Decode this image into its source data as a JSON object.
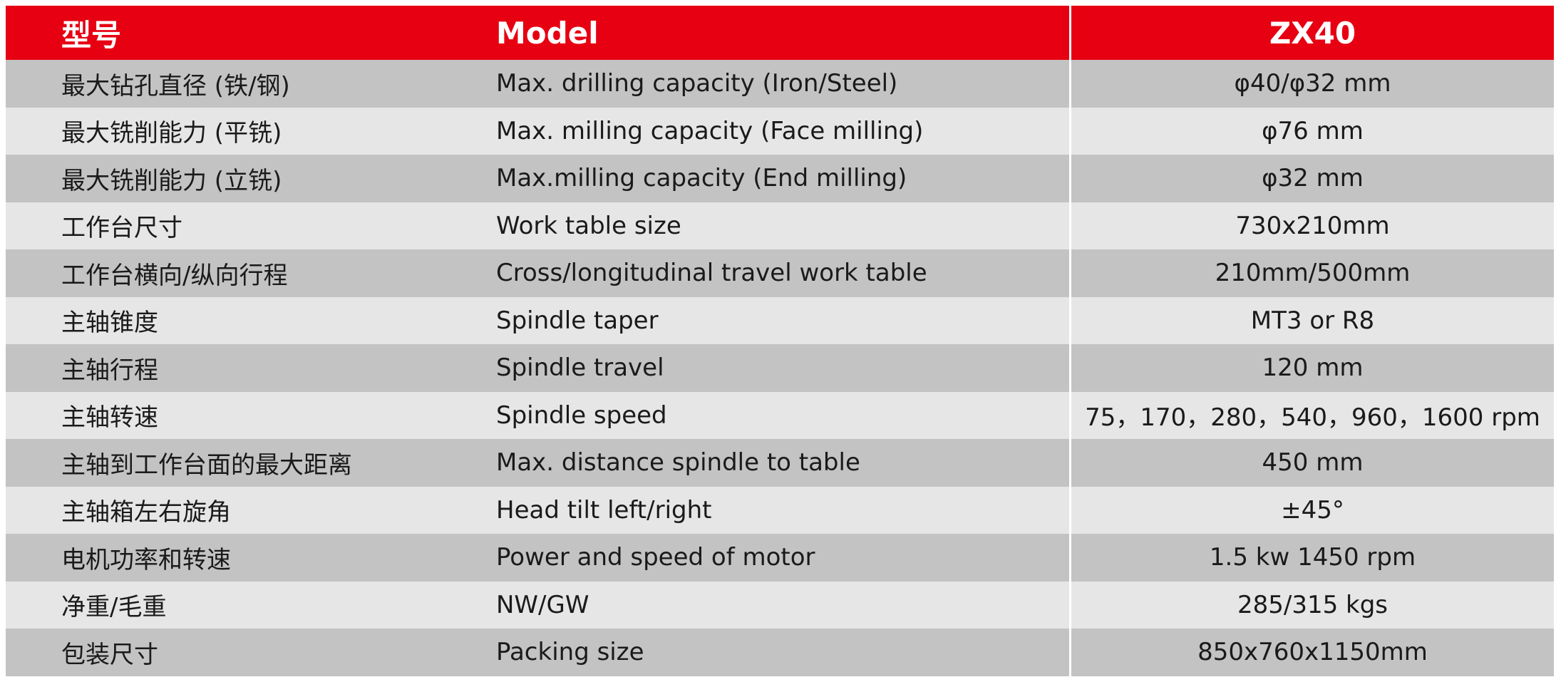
{
  "header": {
    "col_cn": "型号",
    "col_en": "Model",
    "col_val": "ZX40"
  },
  "rows": [
    {
      "cn": "最大钻孔直径 (铁/钢)",
      "en": "Max. drilling capacity (Iron/Steel)",
      "value": "φ40/φ32 mm"
    },
    {
      "cn": "最大铣削能力 (平铣)",
      "en": "Max. milling capacity (Face milling)",
      "value": "φ76 mm"
    },
    {
      "cn": "最大铣削能力 (立铣)",
      "en": "Max.milling capacity (End milling)",
      "value": "φ32 mm"
    },
    {
      "cn": "工作台尺寸",
      "en": "Work table size",
      "value": "730x210mm"
    },
    {
      "cn": "工作台横向/纵向行程",
      "en": "Cross/longitudinal travel work table",
      "value": "210mm/500mm"
    },
    {
      "cn": "主轴锥度",
      "en": "Spindle taper",
      "value": "MT3 or R8"
    },
    {
      "cn": "主轴行程",
      "en": "Spindle travel",
      "value": "120 mm"
    },
    {
      "cn": "主轴转速",
      "en": "Spindle speed",
      "value": "75，170，280，540，960，1600 rpm"
    },
    {
      "cn": "主轴到工作台面的最大距离",
      "en": "Max. distance spindle to table",
      "value": "450 mm"
    },
    {
      "cn": "主轴箱左右旋角",
      "en": "Head tilt left/right",
      "value": "±45°"
    },
    {
      "cn": "电机功率和转速",
      "en": "Power and speed of motor",
      "value": "1.5 kw 1450 rpm"
    },
    {
      "cn": "净重/毛重",
      "en": "NW/GW",
      "value": "285/315 kgs"
    },
    {
      "cn": "包装尺寸",
      "en": "Packing size",
      "value": "850x760x1150mm"
    }
  ],
  "colors": {
    "header_bg": "#e60012",
    "row_dark": "#c3c3c3",
    "row_light": "#e6e6e6",
    "text": "#1a1a1a"
  }
}
